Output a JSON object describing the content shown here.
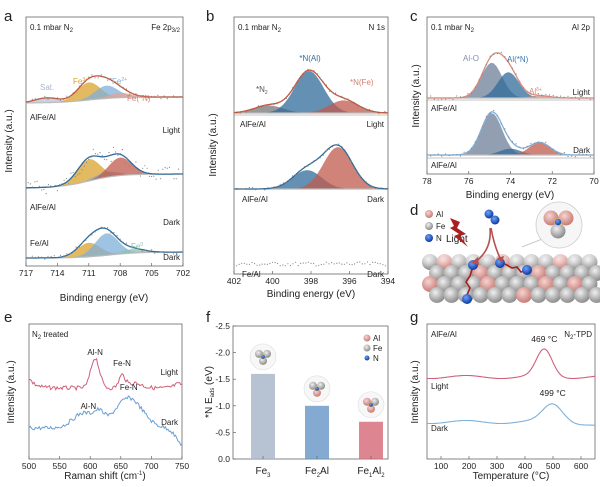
{
  "figure": {
    "panel_letters": [
      "a",
      "b",
      "c",
      "d",
      "e",
      "f",
      "g"
    ]
  },
  "chart_data": [
    {
      "panel": "a",
      "type": "line",
      "title_left": "0.1 mbar N",
      "title_left_sub": "2",
      "title_right": "Fe 2p",
      "title_right_sub": "3/2",
      "xlabel": "Binding energy (eV)",
      "ylabel": "Intensity (a.u.)",
      "xlim": [
        717,
        702
      ],
      "xticks": [
        "717",
        "714",
        "711",
        "708",
        "705",
        "702"
      ],
      "traces": [
        {
          "sample": "AlFe/Al",
          "condition": "Light",
          "fit_color": "#c0553a",
          "components": [
            {
              "name": "Sat.",
              "center": 715,
              "height": 0.15,
              "color": "#b8c3d6"
            },
            {
              "name": "Fe3+",
              "label": "Fe",
              "sup": "3+",
              "center": 711,
              "height": 0.55,
              "color": "#d9a12c"
            },
            {
              "name": "Fe2+",
              "label": "Fe",
              "sup": "2+",
              "center": 709.3,
              "height": 0.4,
              "color": "#7fb0d9"
            },
            {
              "name": "Fe(*N)",
              "label": "Fe(*N)",
              "center": 708,
              "height": 0.15,
              "color": "#e0a396"
            }
          ]
        },
        {
          "sample": "AlFe/Al",
          "condition": "Dark",
          "fit_color": "#2f6b9a",
          "components": [
            {
              "name": "Fe3+",
              "center": 711,
              "height": 0.6,
              "color": "#d9a12c"
            },
            {
              "name": "Fe2+",
              "center": 709.3,
              "height": 0.15,
              "color": "#7fb0d9"
            },
            {
              "name": "Fe(*N)",
              "center": 708,
              "height": 0.5,
              "color": "#c0594c"
            }
          ]
        },
        {
          "sample": "Fe/Al",
          "condition": "Dark",
          "fit_color": "#2f6b9a",
          "components": [
            {
              "name": "Fe3+",
              "center": 711,
              "height": 0.35,
              "color": "#d9a12c"
            },
            {
              "name": "Fe2+",
              "center": 709.3,
              "height": 0.55,
              "color": "#7fb0d9"
            },
            {
              "name": "Fe0",
              "label": "Fe",
              "sup": "0",
              "center": 706.8,
              "height": 0.1,
              "color": "#8fbfb0"
            }
          ]
        }
      ]
    },
    {
      "panel": "b",
      "type": "line",
      "title_left": "0.1 mbar N",
      "title_left_sub": "2",
      "title_right": "N 1s",
      "xlabel": "Binding energy (eV)",
      "ylabel": "Intensity (a.u.)",
      "xlim": [
        402,
        394
      ],
      "xticks": [
        "402",
        "400",
        "398",
        "396",
        "394"
      ],
      "traces": [
        {
          "sample": "AlFe/Al",
          "condition": "Light",
          "fit_color": "#c0553a",
          "components": [
            {
              "name": "*N2",
              "label": "*N",
              "sub": "2",
              "center": 400.2,
              "height": 0.18,
              "color": "#777777"
            },
            {
              "name": "*N(Al)",
              "label": "*N(Al)",
              "center": 398.1,
              "height": 1.0,
              "color": "#2f6b9a"
            },
            {
              "name": "*N(Fe)",
              "label": "*N(Fe)",
              "center": 396.3,
              "height": 0.3,
              "color": "#c0594c"
            }
          ]
        },
        {
          "sample": "AlFe/Al",
          "condition": "Dark",
          "fit_color": "#2f6b9a",
          "components": [
            {
              "name": "*N(Al)",
              "center": 398.2,
              "height": 0.45,
              "color": "#2f6b9a"
            },
            {
              "name": "*N(Fe)",
              "center": 396.6,
              "height": 1.0,
              "color": "#c0594c"
            }
          ]
        },
        {
          "sample": "Fe/Al",
          "condition": "Dark",
          "fit_color": null,
          "components": []
        }
      ]
    },
    {
      "panel": "c",
      "type": "line",
      "title_left": "0.1 mbar N",
      "title_left_sub": "2",
      "title_right": "Al 2p",
      "xlabel": "Binding energy (eV)",
      "ylabel": "Intensity (a.u.)",
      "xlim": [
        78,
        70
      ],
      "xticks": [
        "78",
        "76",
        "74",
        "72",
        "70"
      ],
      "traces": [
        {
          "sample": "AlFe/Al",
          "condition": "Light",
          "fit_color": "#d98a7a",
          "components": [
            {
              "name": "Al-O",
              "label": "Al-O",
              "center": 74.9,
              "height": 0.75,
              "color": "#6d7f9a"
            },
            {
              "name": "Al(*N)",
              "label": "Al(*N)",
              "center": 74.1,
              "height": 0.55,
              "color": "#2f6b9a"
            },
            {
              "name": "Al-delta",
              "label": "Al",
              "sup": "δ+",
              "center": 72.6,
              "height": 0.05,
              "color": "#d98a7a"
            }
          ]
        },
        {
          "sample": "AlFe/Al",
          "condition": "Dark",
          "fit_color": "#7fb0d9",
          "components": [
            {
              "name": "Al-O",
              "center": 74.9,
              "height": 1.0,
              "color": "#6d7f9a"
            },
            {
              "name": "Al(*N)",
              "center": 74.0,
              "height": 0.15,
              "color": "#2f6b9a"
            },
            {
              "name": "Al-delta",
              "center": 72.6,
              "height": 0.3,
              "color": "#c0594c"
            }
          ]
        }
      ]
    },
    {
      "panel": "e",
      "type": "line",
      "title": "N",
      "title_sub": "2",
      "title_rest": " treated",
      "xlabel": "Raman shift (cm",
      "xlabel_sup": "-1",
      "xlabel_end": ")",
      "ylabel": "Intensity (a.u.)",
      "xlim": [
        500,
        750
      ],
      "xticks": [
        "500",
        "550",
        "600",
        "650",
        "700",
        "750"
      ],
      "series": [
        {
          "name": "Light",
          "color": "#d0607a",
          "peaks": [
            {
              "label": "Al-N",
              "x": 608
            },
            {
              "label": "Fe-N",
              "x": 652
            }
          ]
        },
        {
          "name": "Dark",
          "color": "#6a9fd2",
          "peaks": [
            {
              "label": "Al-N",
              "x": 597
            },
            {
              "label": "Fe-N",
              "x": 663
            }
          ]
        }
      ]
    },
    {
      "panel": "f",
      "type": "bar",
      "ylabel": "*N E",
      "ylabel_sub": "ads",
      "ylabel_end": " (eV)",
      "ylim": [
        0.0,
        -2.5
      ],
      "yticks": [
        "0.0",
        "-0.5",
        "-1.0",
        "-1.5",
        "-2.0",
        "-2.5"
      ],
      "categories": [
        {
          "base": "Fe",
          "sub": "3",
          "rest": "",
          "rest_sub": ""
        },
        {
          "base": "Fe",
          "sub": "2",
          "rest": "Al",
          "rest_sub": ""
        },
        {
          "base": "Fe",
          "sub": "1",
          "rest": "Al",
          "rest_sub": "2"
        }
      ],
      "values": [
        -1.6,
        -1.0,
        -0.7
      ],
      "colors": [
        "#aab7cb",
        "#6f9bc9",
        "#d8707f"
      ],
      "legend": [
        {
          "label": "Al",
          "color": "#d98f8a"
        },
        {
          "label": "Fe",
          "color": "#b0b0b0"
        },
        {
          "label": "N",
          "color": "#1f58b8"
        }
      ],
      "legend_position": "top-right"
    },
    {
      "panel": "g",
      "type": "line",
      "title_left": "AlFe/Al",
      "title_right": "N",
      "title_right_sub": "2",
      "title_right_rest": "-TPD",
      "xlabel": "Temperature (°C)",
      "ylabel": "Intensity (a.u.)",
      "xlim": [
        50,
        650
      ],
      "xticks": [
        "100",
        "200",
        "300",
        "400",
        "500",
        "600"
      ],
      "series": [
        {
          "name": "Light",
          "color": "#d0607a",
          "peak_x": 469,
          "peak_label": "469 °C"
        },
        {
          "name": "Dark",
          "color": "#7fb0d9",
          "peak_x": 499,
          "peak_label": "499 °C"
        }
      ]
    }
  ],
  "schematic_d": {
    "legend": [
      {
        "label": "Al",
        "color": "#d98f8a"
      },
      {
        "label": "Fe",
        "color": "#b0b0b0"
      },
      {
        "label": "N",
        "color": "#1f58b8"
      }
    ],
    "light_label": "Light"
  }
}
